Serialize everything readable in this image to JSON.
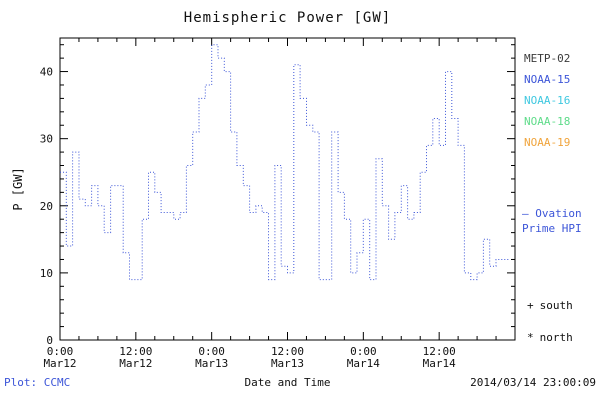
{
  "title": "Hemispheric Power [GW]",
  "colors": {
    "axis": "#000000",
    "blue": "#3c55d8"
  },
  "legend": {
    "satellites": [
      {
        "label": "METP-02",
        "color": "#3a3a3a"
      },
      {
        "label": "NOAA-15",
        "color": "#3c55d8"
      },
      {
        "label": "NOAA-16",
        "color": "#3fc8e0"
      },
      {
        "label": "NOAA-18",
        "color": "#5fdc8a"
      },
      {
        "label": "NOAA-19",
        "color": "#f0a43c"
      }
    ],
    "ovation": {
      "line1": "— Ovation",
      "line2": "Prime HPI",
      "color": "#3c55d8"
    },
    "markers": [
      {
        "symbol": "+",
        "label": "south"
      },
      {
        "symbol": "*",
        "label": "north"
      }
    ]
  },
  "footer": {
    "plot_credit": "Plot: CCMC",
    "plot_credit_color": "#3c55d8",
    "timestamp": "2014/03/14 23:00:09"
  },
  "chart_data": {
    "type": "line",
    "style": "dotted-step",
    "title": "Hemispheric Power [GW]",
    "xlabel": "Date and Time",
    "ylabel": "P [GW]",
    "ylim": [
      0,
      45
    ],
    "yticks": [
      0,
      10,
      20,
      30,
      40
    ],
    "xlim_hours": [
      0,
      72
    ],
    "x_unit": "hours since Mar12 0:00",
    "x_step_hours": 1,
    "xticks": [
      {
        "hour": 0,
        "label": [
          "0:00",
          "Mar12"
        ]
      },
      {
        "hour": 12,
        "label": [
          "12:00",
          "Mar12"
        ]
      },
      {
        "hour": 24,
        "label": [
          "0:00",
          "Mar13"
        ]
      },
      {
        "hour": 36,
        "label": [
          "12:00",
          "Mar13"
        ]
      },
      {
        "hour": 48,
        "label": [
          "0:00",
          "Mar14"
        ]
      },
      {
        "hour": 60,
        "label": [
          "12:00",
          "Mar14"
        ]
      }
    ],
    "series": [
      {
        "name": "Ovation Prime HPI",
        "color": "#3c55d8",
        "values": [
          25,
          14,
          28,
          21,
          20,
          23,
          20,
          16,
          23,
          23,
          13,
          9,
          9,
          18,
          25,
          22,
          19,
          19,
          18,
          19,
          26,
          31,
          36,
          38,
          44,
          42,
          40,
          31,
          26,
          23,
          19,
          20,
          19,
          9,
          26,
          11,
          10,
          41,
          36,
          32,
          31,
          9,
          9,
          31,
          22,
          18,
          10,
          13,
          18,
          9,
          27,
          20,
          15,
          19,
          23,
          18,
          19,
          25,
          29,
          33,
          29,
          40,
          33,
          29,
          10,
          9,
          10,
          15,
          11,
          12,
          12
        ]
      }
    ]
  }
}
